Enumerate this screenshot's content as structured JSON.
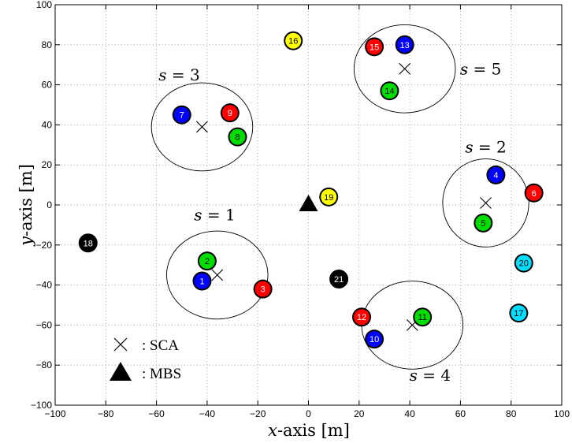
{
  "chart_data": {
    "type": "scatter",
    "title": "",
    "xlabel": "x-axis [m]",
    "ylabel": "y-axis [m]",
    "xlim": [
      -100,
      100
    ],
    "ylim": [
      -100,
      100
    ],
    "xticks": [
      -100,
      -80,
      -60,
      -40,
      -20,
      0,
      20,
      40,
      60,
      80,
      100
    ],
    "yticks": [
      -100,
      -80,
      -60,
      -40,
      -20,
      0,
      20,
      40,
      60,
      80,
      100
    ],
    "grid": true,
    "colors": {
      "blue": "#0000ff",
      "red": "#ff0000",
      "green": "#00dd00",
      "yellow": "#ffff00",
      "cyan": "#00ddff",
      "black": "#000000"
    },
    "users": [
      {
        "id": "1",
        "x": -42,
        "y": -38,
        "color": "blue"
      },
      {
        "id": "2",
        "x": -40,
        "y": -28,
        "color": "green"
      },
      {
        "id": "3",
        "x": -18,
        "y": -42,
        "color": "red"
      },
      {
        "id": "4",
        "x": 74,
        "y": 15,
        "color": "blue"
      },
      {
        "id": "5",
        "x": 69,
        "y": -9,
        "color": "green"
      },
      {
        "id": "6",
        "x": 89,
        "y": 6,
        "color": "red"
      },
      {
        "id": "7",
        "x": -50,
        "y": 45,
        "color": "blue"
      },
      {
        "id": "8",
        "x": -28,
        "y": 34,
        "color": "green"
      },
      {
        "id": "9",
        "x": -31,
        "y": 46,
        "color": "red"
      },
      {
        "id": "10",
        "x": 26,
        "y": -67,
        "color": "blue"
      },
      {
        "id": "11",
        "x": 45,
        "y": -56,
        "color": "green"
      },
      {
        "id": "12",
        "x": 21,
        "y": -56,
        "color": "red"
      },
      {
        "id": "13",
        "x": 38,
        "y": 80,
        "color": "blue"
      },
      {
        "id": "14",
        "x": 32,
        "y": 57,
        "color": "green"
      },
      {
        "id": "15",
        "x": 26,
        "y": 79,
        "color": "red"
      },
      {
        "id": "16",
        "x": -6,
        "y": 82,
        "color": "yellow"
      },
      {
        "id": "17",
        "x": 83,
        "y": -54,
        "color": "cyan"
      },
      {
        "id": "18",
        "x": -87,
        "y": -19,
        "color": "black"
      },
      {
        "id": "19",
        "x": 8,
        "y": 4,
        "color": "yellow"
      },
      {
        "id": "20",
        "x": 85,
        "y": -29,
        "color": "cyan"
      },
      {
        "id": "21",
        "x": 12,
        "y": -37,
        "color": "black"
      }
    ],
    "sca": [
      {
        "x": -36,
        "y": -35
      },
      {
        "x": 70,
        "y": 1
      },
      {
        "x": -42,
        "y": 39
      },
      {
        "x": 41,
        "y": -60
      },
      {
        "x": 38,
        "y": 68
      }
    ],
    "clusters": [
      {
        "label": "s = 1",
        "cx": -36,
        "cy": -35,
        "rx": 20,
        "ry": 22,
        "text_x": -37,
        "text_y": -5
      },
      {
        "label": "s = 2",
        "cx": 70,
        "cy": 1,
        "rx": 17,
        "ry": 22,
        "text_x": 70,
        "text_y": 29
      },
      {
        "label": "s = 3",
        "cx": -42,
        "cy": 39,
        "rx": 20,
        "ry": 22,
        "text_x": -51,
        "text_y": 65
      },
      {
        "label": "s = 4",
        "cx": 41,
        "cy": -60,
        "rx": 20,
        "ry": 22,
        "text_x": 48,
        "text_y": -85
      },
      {
        "label": "s = 5",
        "cx": 38,
        "cy": 68,
        "rx": 20,
        "ry": 22,
        "text_x": 68,
        "text_y": 68
      }
    ],
    "mbs": {
      "x": 0,
      "y": 0
    },
    "legend": {
      "placement": "bottom-left",
      "entries": [
        {
          "marker": "x",
          "label": ": SCA"
        },
        {
          "marker": "triangle",
          "label": ": MBS"
        }
      ]
    }
  }
}
